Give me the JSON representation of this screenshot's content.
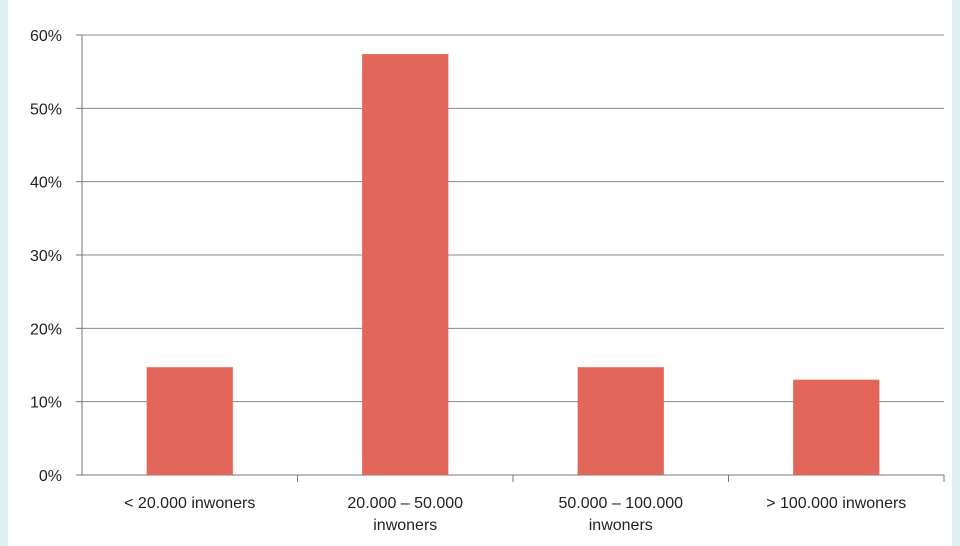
{
  "chart_data": {
    "type": "bar",
    "categories": [
      [
        "< 20.000 inwoners"
      ],
      [
        "20.000 – 50.000",
        "inwoners"
      ],
      [
        "50.000 – 100.000",
        "inwoners"
      ],
      [
        "> 100.000 inwoners"
      ]
    ],
    "values": [
      0.147,
      0.574,
      0.147,
      0.13
    ],
    "y_ticks": [
      "0%",
      "10%",
      "20%",
      "30%",
      "40%",
      "50%",
      "60%"
    ],
    "ylim": [
      0,
      0.6
    ],
    "grid": true,
    "bar_color": "#e2665a",
    "axis_color": "#777777",
    "grid_color": "#888888"
  }
}
